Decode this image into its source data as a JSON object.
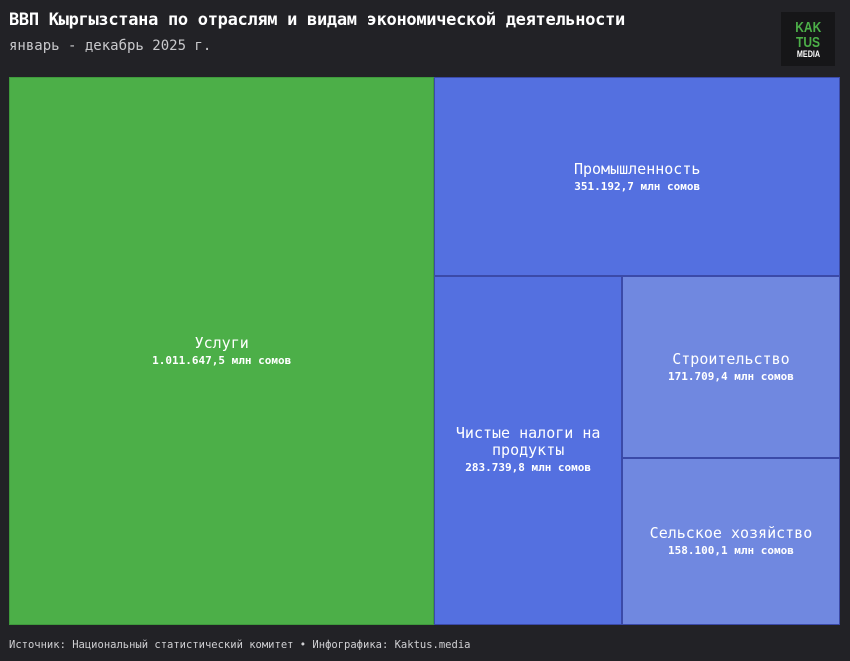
{
  "title": "ВВП Кыргызстана по отраслям и видам экономической деятельности",
  "subtitle": "январь - декабрь 2025 г.",
  "logo": {
    "line1": "KAK",
    "line2": "TUS",
    "line3": "MEDIA"
  },
  "source": "Источник: Национальный статистический комитет • Инфографика: Kaktus.media",
  "chart_data": {
    "type": "treemap",
    "unit": "млн сомов",
    "items": [
      {
        "name": "Услуги",
        "value": 1011647.5,
        "label": "1.011.647,5 млн сомов",
        "color": "#4caf48"
      },
      {
        "name": "Промышленность",
        "value": 351192.7,
        "label": "351.192,7 млн сомов",
        "color": "#5470e0"
      },
      {
        "name": "Чистые налоги на продукты",
        "value": 283739.8,
        "label": "283.739,8 млн сомов",
        "color": "#5470e0"
      },
      {
        "name": "Строительство",
        "value": 171709.4,
        "label": "171.709,4 млн сомов",
        "color": "#7088e0"
      },
      {
        "name": "Сельское хозяйство",
        "value": 158100.1,
        "label": "158.100,1 млн сомов",
        "color": "#7088e0"
      }
    ]
  }
}
